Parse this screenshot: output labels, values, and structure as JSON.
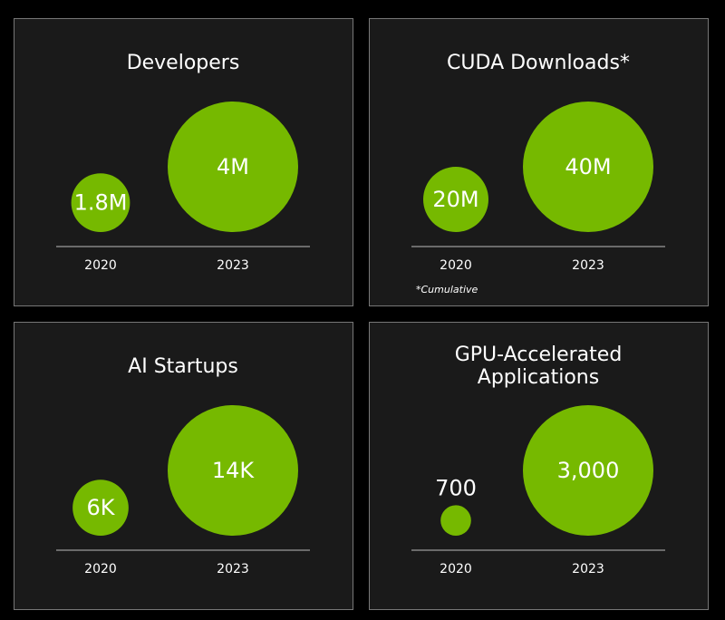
{
  "chart_data": [
    {
      "type": "bubble",
      "title": "Developers",
      "categories": [
        "2020",
        "2023"
      ],
      "values": [
        1800000,
        4000000
      ],
      "value_labels": [
        "1.8M",
        "4M"
      ],
      "color": "#76b900"
    },
    {
      "type": "bubble",
      "title": "CUDA Downloads*",
      "categories": [
        "2020",
        "2023"
      ],
      "values": [
        20000000,
        40000000
      ],
      "value_labels": [
        "20M",
        "40M"
      ],
      "color": "#76b900",
      "footnote": "*Cumulative"
    },
    {
      "type": "bubble",
      "title": "AI Startups",
      "categories": [
        "2020",
        "2023"
      ],
      "values": [
        6000,
        14000
      ],
      "value_labels": [
        "6K",
        "14K"
      ],
      "color": "#76b900"
    },
    {
      "type": "bubble",
      "title": "GPU-Accelerated Applications",
      "categories": [
        "2020",
        "2023"
      ],
      "values": [
        700,
        3000
      ],
      "value_labels": [
        "700",
        "3,000"
      ],
      "color": "#76b900"
    }
  ]
}
